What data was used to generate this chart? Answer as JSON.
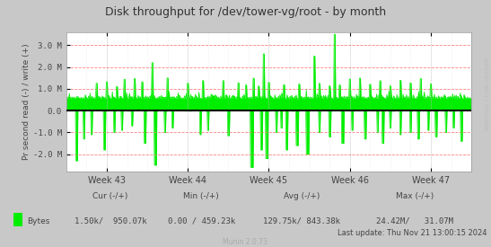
{
  "title": "Disk throughput for /dev/tower-vg/root - by month",
  "ylabel": "Pr second read (-) / write (+)",
  "bg_color": "#C8C8C8",
  "plot_bg_color": "#FFFFFF",
  "grid_color_h": "#FF8080",
  "grid_color_v": "#C0C0C0",
  "line_color": "#00EE00",
  "fill_color": "#00EE00",
  "zero_line_color": "#000000",
  "week_labels": [
    "Week 43",
    "Week 44",
    "Week 45",
    "Week 46",
    "Week 47"
  ],
  "ylim": [
    -2.8,
    3.6
  ],
  "yticks": [
    -2.0,
    -1.0,
    0.0,
    1.0,
    2.0,
    3.0
  ],
  "ytick_labels": [
    "-2.0 M",
    "-1.0 M",
    "0.0",
    "1.0 M",
    "2.0 M",
    "3.0 M"
  ],
  "legend_label": "Bytes",
  "cur_label": "Cur (-/+)",
  "min_label": "Min (-/+)",
  "avg_label": "Avg (-/+)",
  "max_label": "Max (-/+)",
  "cur_value": "1.50k/  950.07k",
  "min_value": "0.00 / 459.23k",
  "avg_value": "129.75k/ 843.38k",
  "max_value": "24.42M/   31.07M",
  "last_update": "Last update: Thu Nov 21 13:00:15 2024",
  "munin_version": "Munin 2.0.73",
  "rrdtool_label": "RRDTOOL / TOBI OETIKER",
  "num_points": 800
}
